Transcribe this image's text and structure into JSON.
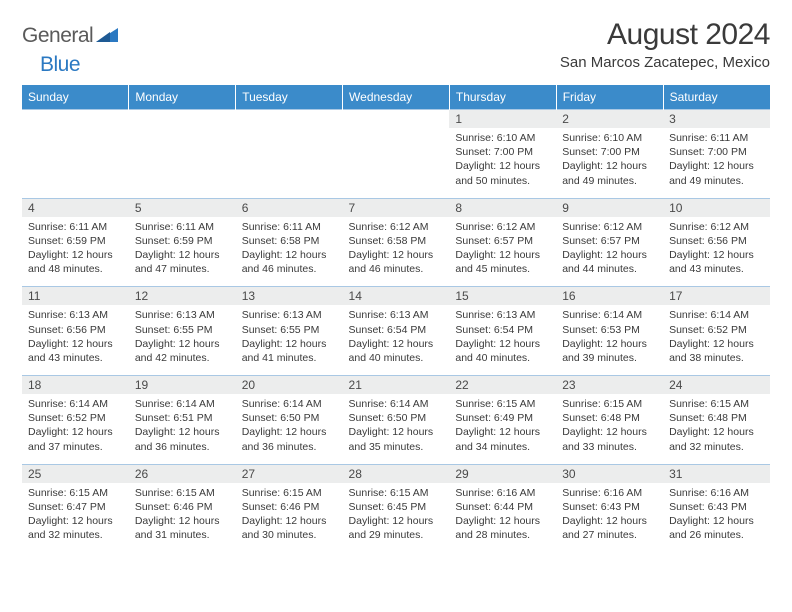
{
  "logo": {
    "general": "General",
    "blue": "Blue"
  },
  "title": "August 2024",
  "location": "San Marcos Zacatepec, Mexico",
  "colors": {
    "header_bg": "#3b8bca",
    "header_text": "#ffffff",
    "daynum_bg": "#eceded",
    "border": "#a9c8e4",
    "text": "#3a3a3a",
    "logo_gray": "#5a5a5a",
    "logo_blue": "#2b79c2"
  },
  "font": {
    "title_size": 30,
    "location_size": 15,
    "header_size": 12,
    "daynum_size": 12,
    "info_size": 10.5
  },
  "dayHeaders": [
    "Sunday",
    "Monday",
    "Tuesday",
    "Wednesday",
    "Thursday",
    "Friday",
    "Saturday"
  ],
  "weeks": [
    [
      null,
      null,
      null,
      null,
      {
        "n": "1",
        "sr": "6:10 AM",
        "ss": "7:00 PM",
        "dl": "12 hours and 50 minutes."
      },
      {
        "n": "2",
        "sr": "6:10 AM",
        "ss": "7:00 PM",
        "dl": "12 hours and 49 minutes."
      },
      {
        "n": "3",
        "sr": "6:11 AM",
        "ss": "7:00 PM",
        "dl": "12 hours and 49 minutes."
      }
    ],
    [
      {
        "n": "4",
        "sr": "6:11 AM",
        "ss": "6:59 PM",
        "dl": "12 hours and 48 minutes."
      },
      {
        "n": "5",
        "sr": "6:11 AM",
        "ss": "6:59 PM",
        "dl": "12 hours and 47 minutes."
      },
      {
        "n": "6",
        "sr": "6:11 AM",
        "ss": "6:58 PM",
        "dl": "12 hours and 46 minutes."
      },
      {
        "n": "7",
        "sr": "6:12 AM",
        "ss": "6:58 PM",
        "dl": "12 hours and 46 minutes."
      },
      {
        "n": "8",
        "sr": "6:12 AM",
        "ss": "6:57 PM",
        "dl": "12 hours and 45 minutes."
      },
      {
        "n": "9",
        "sr": "6:12 AM",
        "ss": "6:57 PM",
        "dl": "12 hours and 44 minutes."
      },
      {
        "n": "10",
        "sr": "6:12 AM",
        "ss": "6:56 PM",
        "dl": "12 hours and 43 minutes."
      }
    ],
    [
      {
        "n": "11",
        "sr": "6:13 AM",
        "ss": "6:56 PM",
        "dl": "12 hours and 43 minutes."
      },
      {
        "n": "12",
        "sr": "6:13 AM",
        "ss": "6:55 PM",
        "dl": "12 hours and 42 minutes."
      },
      {
        "n": "13",
        "sr": "6:13 AM",
        "ss": "6:55 PM",
        "dl": "12 hours and 41 minutes."
      },
      {
        "n": "14",
        "sr": "6:13 AM",
        "ss": "6:54 PM",
        "dl": "12 hours and 40 minutes."
      },
      {
        "n": "15",
        "sr": "6:13 AM",
        "ss": "6:54 PM",
        "dl": "12 hours and 40 minutes."
      },
      {
        "n": "16",
        "sr": "6:14 AM",
        "ss": "6:53 PM",
        "dl": "12 hours and 39 minutes."
      },
      {
        "n": "17",
        "sr": "6:14 AM",
        "ss": "6:52 PM",
        "dl": "12 hours and 38 minutes."
      }
    ],
    [
      {
        "n": "18",
        "sr": "6:14 AM",
        "ss": "6:52 PM",
        "dl": "12 hours and 37 minutes."
      },
      {
        "n": "19",
        "sr": "6:14 AM",
        "ss": "6:51 PM",
        "dl": "12 hours and 36 minutes."
      },
      {
        "n": "20",
        "sr": "6:14 AM",
        "ss": "6:50 PM",
        "dl": "12 hours and 36 minutes."
      },
      {
        "n": "21",
        "sr": "6:14 AM",
        "ss": "6:50 PM",
        "dl": "12 hours and 35 minutes."
      },
      {
        "n": "22",
        "sr": "6:15 AM",
        "ss": "6:49 PM",
        "dl": "12 hours and 34 minutes."
      },
      {
        "n": "23",
        "sr": "6:15 AM",
        "ss": "6:48 PM",
        "dl": "12 hours and 33 minutes."
      },
      {
        "n": "24",
        "sr": "6:15 AM",
        "ss": "6:48 PM",
        "dl": "12 hours and 32 minutes."
      }
    ],
    [
      {
        "n": "25",
        "sr": "6:15 AM",
        "ss": "6:47 PM",
        "dl": "12 hours and 32 minutes."
      },
      {
        "n": "26",
        "sr": "6:15 AM",
        "ss": "6:46 PM",
        "dl": "12 hours and 31 minutes."
      },
      {
        "n": "27",
        "sr": "6:15 AM",
        "ss": "6:46 PM",
        "dl": "12 hours and 30 minutes."
      },
      {
        "n": "28",
        "sr": "6:15 AM",
        "ss": "6:45 PM",
        "dl": "12 hours and 29 minutes."
      },
      {
        "n": "29",
        "sr": "6:16 AM",
        "ss": "6:44 PM",
        "dl": "12 hours and 28 minutes."
      },
      {
        "n": "30",
        "sr": "6:16 AM",
        "ss": "6:43 PM",
        "dl": "12 hours and 27 minutes."
      },
      {
        "n": "31",
        "sr": "6:16 AM",
        "ss": "6:43 PM",
        "dl": "12 hours and 26 minutes."
      }
    ]
  ],
  "labels": {
    "sunrise": "Sunrise:",
    "sunset": "Sunset:",
    "daylight": "Daylight:"
  }
}
